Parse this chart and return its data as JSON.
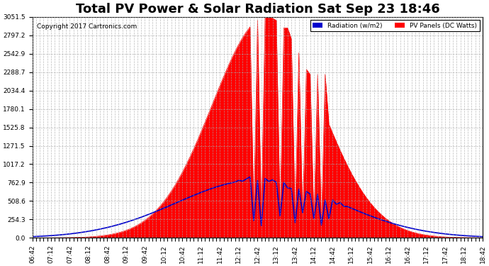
{
  "title": "Total PV Power & Solar Radiation Sat Sep 23 18:46",
  "copyright": "Copyright 2017 Cartronics.com",
  "background_color": "#ffffff",
  "plot_bg_color": "#ffffff",
  "grid_color": "#aaaaaa",
  "pv_fill_color": "#ff0000",
  "radiation_line_color": "#0000cc",
  "ylabel_right_values": [
    0.0,
    254.3,
    508.6,
    762.9,
    1017.2,
    1271.5,
    1525.8,
    1780.1,
    2034.4,
    2288.7,
    2542.9,
    2797.2,
    3051.5
  ],
  "ymax": 3051.5,
  "ymin": 0.0,
  "legend_radiation_label": "Radiation (w/m2)",
  "legend_pv_label": "PV Panels (DC Watts)",
  "legend_radiation_color": "#0000cc",
  "legend_pv_color": "#ff0000",
  "tick_label_fontsize": 6.5,
  "title_fontsize": 13
}
